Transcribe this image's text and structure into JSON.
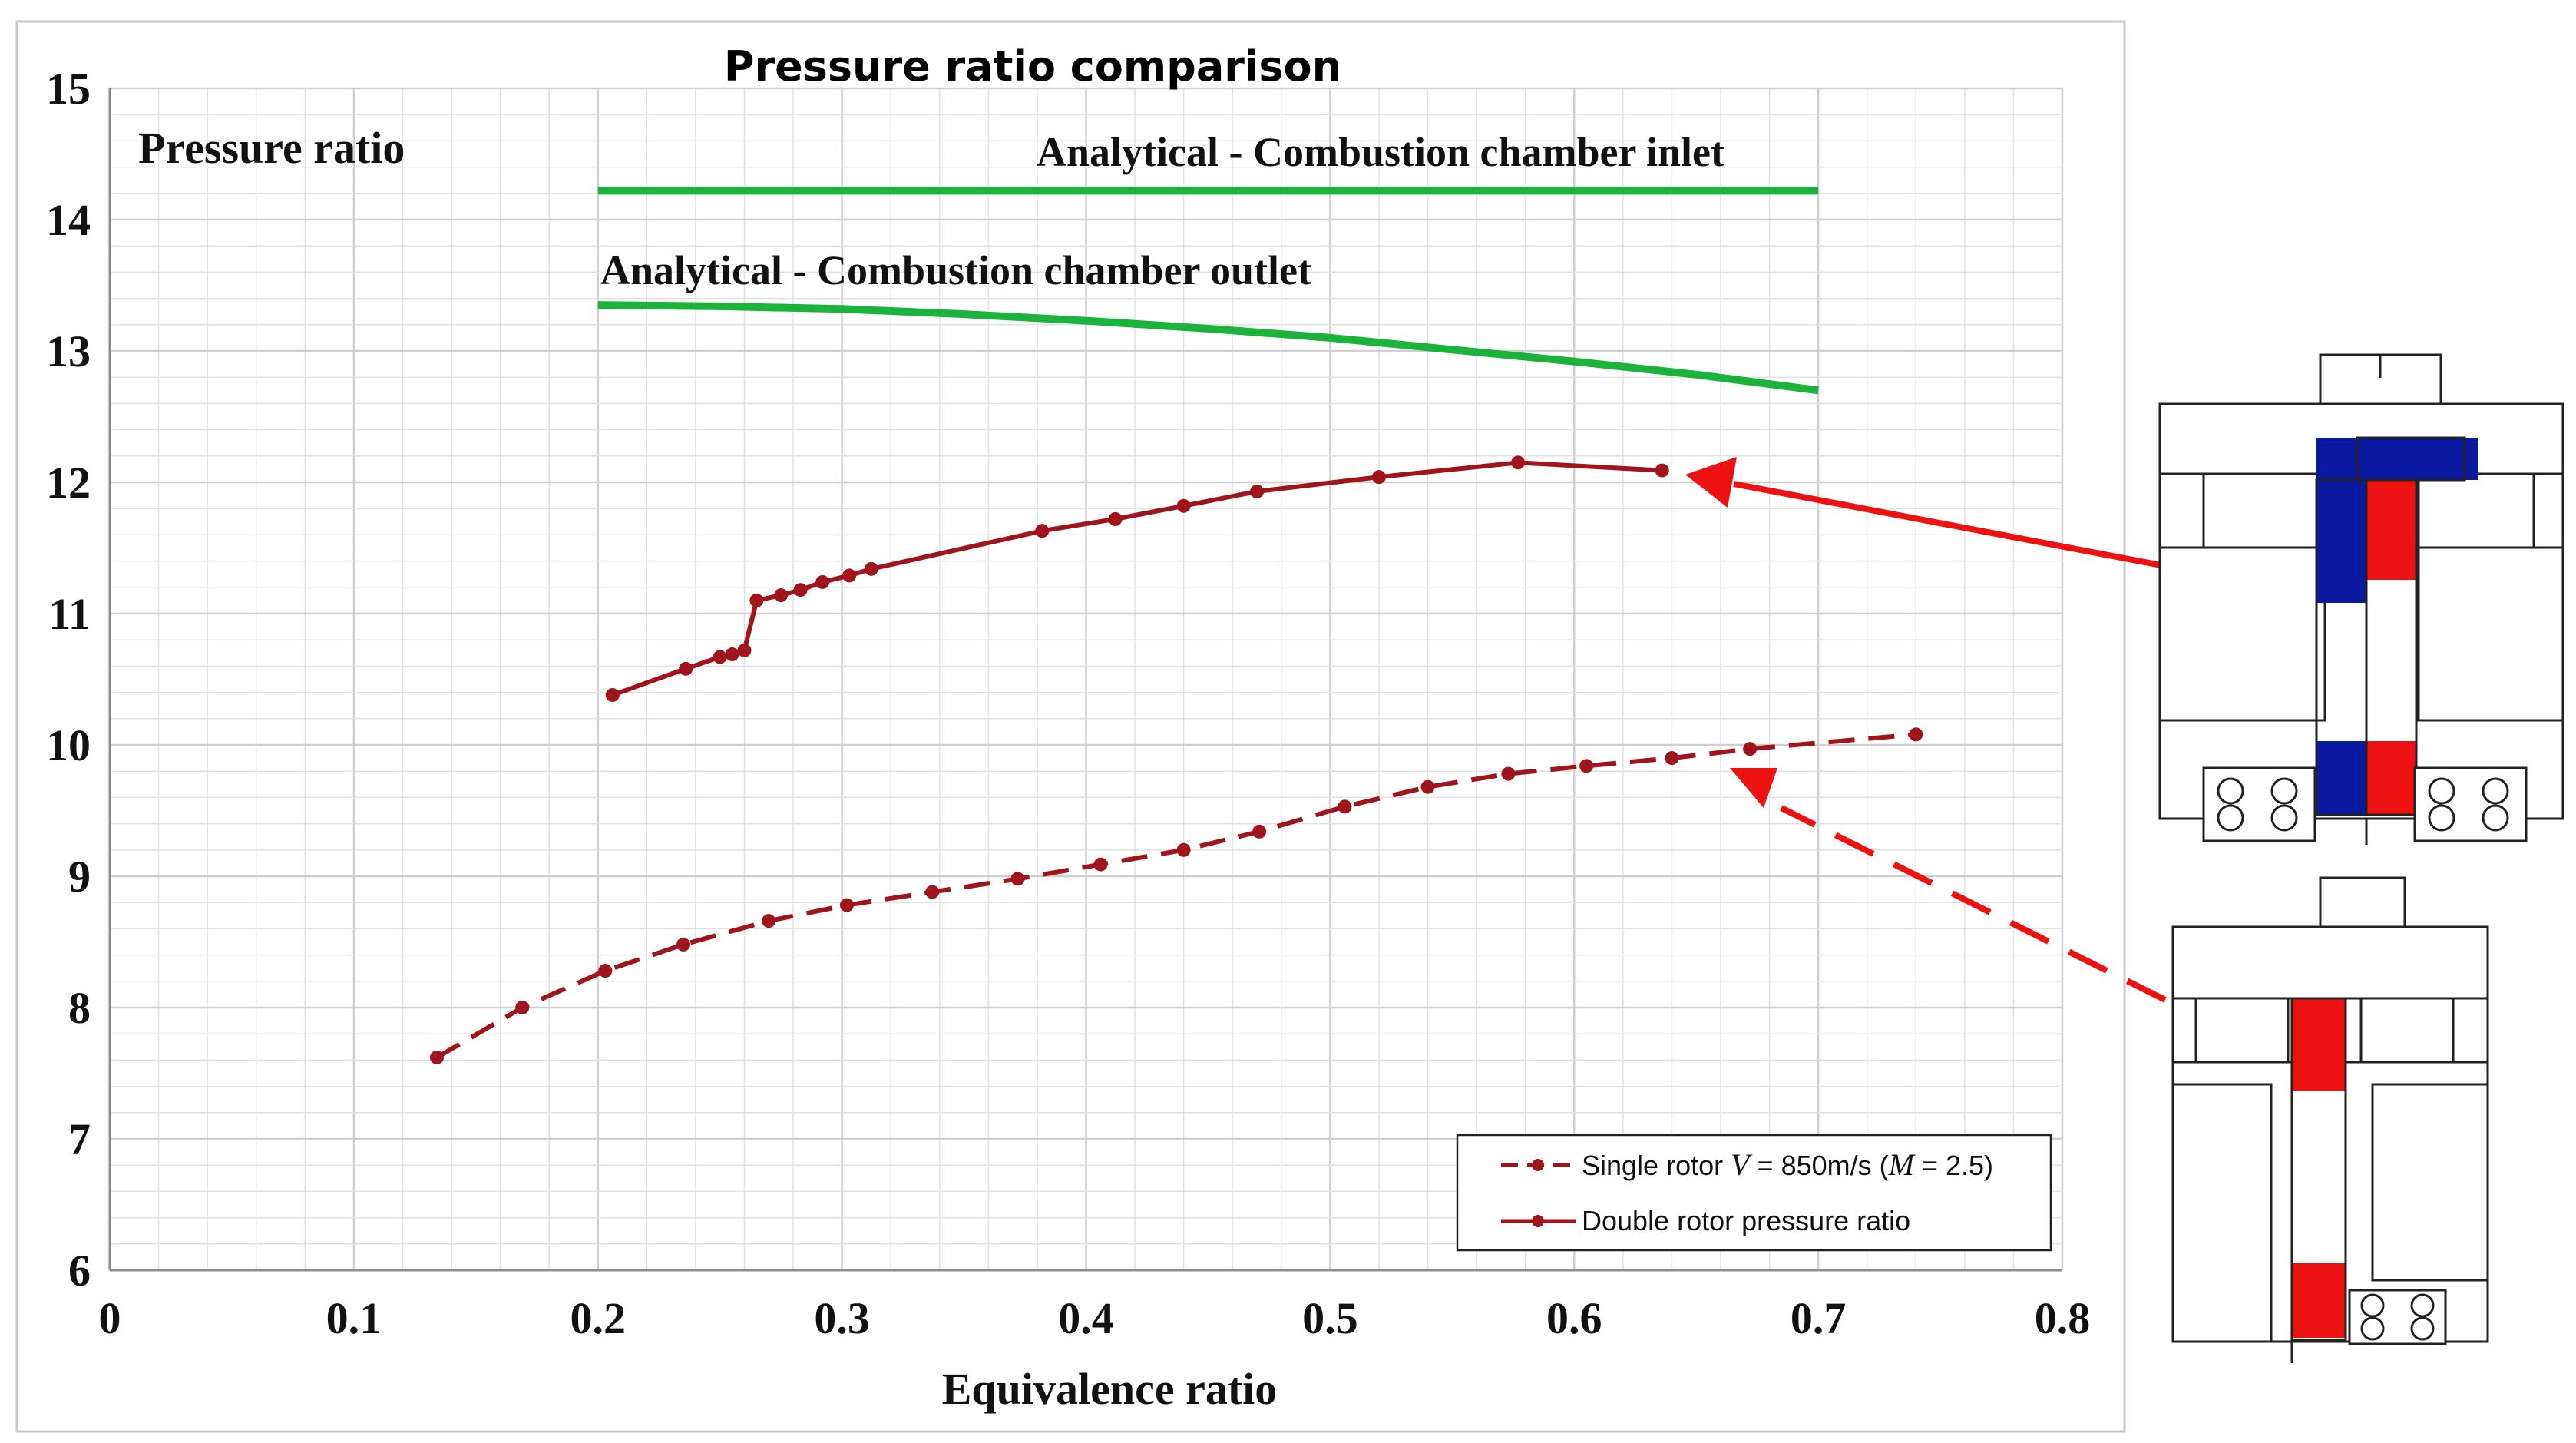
{
  "colors": {
    "analytical": "#1cb33c",
    "rotor": "#a0141c",
    "arrow": "#ee1111",
    "blue": "#0a1aa0",
    "red": "#ee1111"
  },
  "chart_data": {
    "type": "line",
    "title": "Pressure ratio comparison",
    "xlabel": "Equivalence ratio",
    "ylabel": "Pressure ratio",
    "xlim": [
      0,
      0.8
    ],
    "ylim": [
      6,
      15
    ],
    "xticks": [
      "0",
      "0.1",
      "0.2",
      "0.3",
      "0.4",
      "0.5",
      "0.6",
      "0.7",
      "0.8"
    ],
    "yticks": [
      "6",
      "7",
      "8",
      "9",
      "10",
      "11",
      "12",
      "13",
      "14",
      "15"
    ],
    "grid": true,
    "legend_position": "bottom-right",
    "legend": {
      "single_rotor": {
        "prefix": "Single rotor ",
        "v_symbol": "V",
        "eq1": " = 850m/s (",
        "m_symbol": "M",
        "eq2": " = 2.5)"
      },
      "double_rotor": "Double rotor pressure ratio"
    },
    "series": [
      {
        "name": "Analytical - Combustion chamber inlet",
        "style": "solid-green",
        "x": [
          0.2,
          0.7
        ],
        "y": [
          14.22,
          14.22
        ]
      },
      {
        "name": "Analytical - Combustion chamber outlet",
        "style": "solid-green",
        "x": [
          0.2,
          0.25,
          0.3,
          0.35,
          0.4,
          0.45,
          0.5,
          0.55,
          0.6,
          0.65,
          0.7
        ],
        "y": [
          13.35,
          13.34,
          13.32,
          13.28,
          13.23,
          13.17,
          13.1,
          13.01,
          12.92,
          12.82,
          12.7
        ]
      },
      {
        "name": "Double rotor pressure ratio",
        "style": "solid-markers",
        "x": [
          0.206,
          0.236,
          0.25,
          0.255,
          0.26,
          0.265,
          0.275,
          0.283,
          0.292,
          0.303,
          0.312,
          0.382,
          0.412,
          0.44,
          0.47,
          0.52,
          0.577,
          0.636
        ],
        "y": [
          10.38,
          10.58,
          10.67,
          10.69,
          10.72,
          11.1,
          11.14,
          11.18,
          11.24,
          11.29,
          11.34,
          11.63,
          11.72,
          11.82,
          11.93,
          12.04,
          12.15,
          12.09
        ]
      },
      {
        "name": "Single rotor V = 850m/s (M = 2.5)",
        "style": "dashed-markers",
        "x": [
          0.134,
          0.169,
          0.203,
          0.235,
          0.27,
          0.302,
          0.337,
          0.372,
          0.406,
          0.44,
          0.471,
          0.506,
          0.54,
          0.573,
          0.605,
          0.64,
          0.672,
          0.74
        ],
        "y": [
          7.62,
          8.0,
          8.28,
          8.48,
          8.66,
          8.78,
          8.88,
          8.98,
          9.09,
          9.2,
          9.34,
          9.53,
          9.68,
          9.78,
          9.84,
          9.9,
          9.97,
          10.08
        ]
      }
    ]
  }
}
